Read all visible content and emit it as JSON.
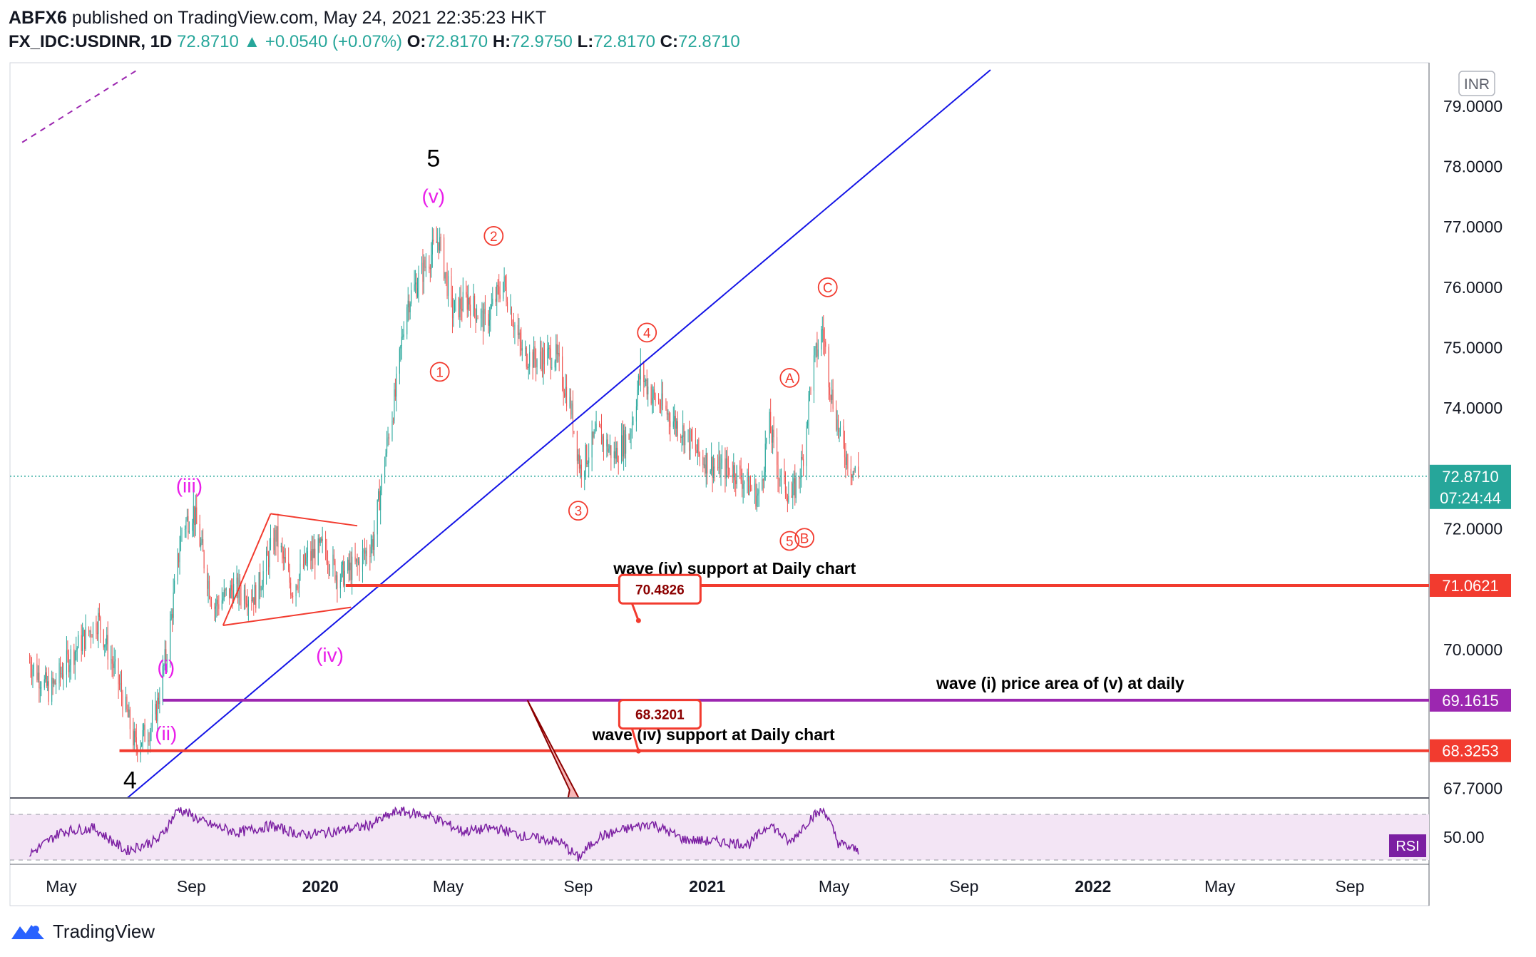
{
  "header": {
    "line1_user": "ABFX6",
    "line1_rest": " published on TradingView.com, May 24, 2021 22:35:23 HKT",
    "symbol": "FX_IDC:USDINR, 1D",
    "last": "72.8710",
    "change": "▲ +0.0540 (+0.07%)",
    "o_label": "O:",
    "o": "72.8170",
    "h_label": "H:",
    "h": "72.9750",
    "l_label": "L:",
    "l": "72.8170",
    "c_label": "C:",
    "c": "72.8710"
  },
  "footer": {
    "brand": "TradingView",
    "logo_icon": "tradingview-logo-icon"
  },
  "colors": {
    "up": "#26a69a",
    "down": "#ef5350",
    "trendline": "#1414e6",
    "support": "#f23b2f",
    "purple": "#9c27b0",
    "magenta": "#e91ee9",
    "rsi": "#7b1fa2"
  },
  "chart_data": {
    "type": "candlestick",
    "currency_badge": "INR",
    "price_axis": {
      "ylim": [
        67.2,
        79.6
      ],
      "ticks": [
        "79.0000",
        "78.0000",
        "77.0000",
        "76.0000",
        "75.0000",
        "74.0000",
        "72.0000",
        "70.0000",
        "67.7000"
      ]
    },
    "time_axis": {
      "ticks": [
        {
          "date": "2019-05-01",
          "label": "May",
          "bold": false
        },
        {
          "date": "2019-09-01",
          "label": "Sep",
          "bold": false
        },
        {
          "date": "2020-01-01",
          "label": "2020",
          "bold": true
        },
        {
          "date": "2020-05-01",
          "label": "May",
          "bold": false
        },
        {
          "date": "2020-09-01",
          "label": "Sep",
          "bold": false
        },
        {
          "date": "2021-01-01",
          "label": "2021",
          "bold": true
        },
        {
          "date": "2021-05-01",
          "label": "May",
          "bold": false
        },
        {
          "date": "2021-09-01",
          "label": "Sep",
          "bold": false
        },
        {
          "date": "2022-01-01",
          "label": "2022",
          "bold": true
        },
        {
          "date": "2022-05-01",
          "label": "May",
          "bold": false
        },
        {
          "date": "2022-09-01",
          "label": "Sep",
          "bold": false
        }
      ]
    },
    "price_path": [
      [
        "2019-04-01",
        69.8
      ],
      [
        "2019-04-20",
        69.3
      ],
      [
        "2019-05-10",
        69.9
      ],
      [
        "2019-06-05",
        70.5
      ],
      [
        "2019-06-25",
        69.4
      ],
      [
        "2019-07-10",
        68.4
      ],
      [
        "2019-07-28",
        68.8
      ],
      [
        "2019-08-10",
        70.1
      ],
      [
        "2019-08-23",
        72.0
      ],
      [
        "2019-09-03",
        72.3
      ],
      [
        "2019-09-22",
        70.7
      ],
      [
        "2019-10-10",
        71.0
      ],
      [
        "2019-11-01",
        70.9
      ],
      [
        "2019-11-20",
        71.9
      ],
      [
        "2019-12-05",
        71.0
      ],
      [
        "2019-12-20",
        71.5
      ],
      [
        "2020-01-05",
        71.7
      ],
      [
        "2020-01-18",
        71.2
      ],
      [
        "2020-02-05",
        71.4
      ],
      [
        "2020-02-20",
        71.8
      ],
      [
        "2020-03-05",
        73.5
      ],
      [
        "2020-03-12",
        74.2
      ],
      [
        "2020-03-22",
        75.7
      ],
      [
        "2020-04-05",
        76.2
      ],
      [
        "2020-04-22",
        76.8
      ],
      [
        "2020-05-05",
        75.6
      ],
      [
        "2020-05-20",
        75.8
      ],
      [
        "2020-06-05",
        75.4
      ],
      [
        "2020-06-22",
        76.1
      ],
      [
        "2020-07-10",
        74.9
      ],
      [
        "2020-07-25",
        74.8
      ],
      [
        "2020-08-10",
        74.9
      ],
      [
        "2020-08-25",
        74.0
      ],
      [
        "2020-09-03",
        73.0
      ],
      [
        "2020-09-20",
        73.6
      ],
      [
        "2020-10-05",
        73.2
      ],
      [
        "2020-10-20",
        73.6
      ],
      [
        "2020-10-30",
        74.6
      ],
      [
        "2020-11-10",
        74.2
      ],
      [
        "2020-11-25",
        73.9
      ],
      [
        "2020-12-10",
        73.6
      ],
      [
        "2020-12-25",
        73.2
      ],
      [
        "2021-01-10",
        73.0
      ],
      [
        "2021-01-25",
        73.0
      ],
      [
        "2021-02-10",
        72.7
      ],
      [
        "2021-02-20",
        72.5
      ],
      [
        "2021-02-28",
        73.8
      ],
      [
        "2021-03-10",
        72.9
      ],
      [
        "2021-03-22",
        72.5
      ],
      [
        "2021-04-01",
        73.1
      ],
      [
        "2021-04-10",
        74.6
      ],
      [
        "2021-04-20",
        75.3
      ],
      [
        "2021-04-28",
        74.3
      ],
      [
        "2021-05-08",
        73.4
      ],
      [
        "2021-05-18",
        73.0
      ],
      [
        "2021-05-24",
        72.87
      ]
    ],
    "last_price": {
      "value": "72.8710",
      "countdown": "07:24:44"
    },
    "horizontal_lines": [
      {
        "name": "support-upper",
        "y": 71.0621,
        "x_start": "2020-01-25",
        "label": "71.0621",
        "color": "#f23b2f"
      },
      {
        "name": "wave-i-area",
        "y": 69.1615,
        "x_start": "2019-08-05",
        "label": "69.1615",
        "color": "#9c27b0"
      },
      {
        "name": "support-lower",
        "y": 68.3253,
        "x_start": "2019-06-25",
        "label": "68.3253",
        "color": "#f23b2f"
      }
    ],
    "trendline": {
      "from": [
        "2019-03-20",
        66.0
      ],
      "to": [
        "2021-09-26",
        79.6
      ]
    },
    "dashed_line": {
      "from": [
        "2019-03-25",
        78.4
      ],
      "to": [
        "2019-07-12",
        79.6
      ]
    },
    "triangle": {
      "top": [
        [
          "2019-11-15",
          72.25
        ],
        [
          "2020-02-05",
          72.05
        ]
      ],
      "bottom": [
        [
          "2019-10-01",
          70.4
        ],
        [
          "2020-01-30",
          70.7
        ]
      ]
    },
    "annotations": [
      {
        "text": "5",
        "x": "2020-04-17",
        "y": 78.0,
        "color": "#000000",
        "size": "large"
      },
      {
        "text": "4",
        "x": "2019-07-05",
        "y": 67.7,
        "color": "#000000",
        "size": "large"
      },
      {
        "text": "(v)",
        "x": "2020-04-17",
        "y": 77.4,
        "color": "#e91ee9",
        "size": "medium"
      },
      {
        "text": "(iii)",
        "x": "2019-08-30",
        "y": 72.6,
        "color": "#e91ee9",
        "size": "medium"
      },
      {
        "text": "(iv)",
        "x": "2020-01-10",
        "y": 69.8,
        "color": "#e91ee9",
        "size": "medium"
      },
      {
        "text": "(i)",
        "x": "2019-08-08",
        "y": 69.6,
        "color": "#e91ee9",
        "size": "medium"
      },
      {
        "text": "(ii)",
        "x": "2019-08-08",
        "y": 68.5,
        "color": "#e91ee9",
        "size": "medium"
      },
      {
        "text": "1",
        "x": "2020-04-23",
        "y": 74.6,
        "color": "#f23b2f",
        "size": "circled"
      },
      {
        "text": "2",
        "x": "2020-06-13",
        "y": 76.85,
        "color": "#f23b2f",
        "size": "circled"
      },
      {
        "text": "3",
        "x": "2020-09-01",
        "y": 72.3,
        "color": "#f23b2f",
        "size": "circled"
      },
      {
        "text": "4",
        "x": "2020-11-05",
        "y": 75.25,
        "color": "#f23b2f",
        "size": "circled"
      },
      {
        "text": "5",
        "x": "2021-03-20",
        "y": 71.8,
        "color": "#f23b2f",
        "size": "circled"
      },
      {
        "text": "A",
        "x": "2021-03-20",
        "y": 74.5,
        "color": "#f23b2f",
        "size": "circled"
      },
      {
        "text": "B",
        "x": "2021-04-03",
        "y": 71.85,
        "color": "#f23b2f",
        "size": "circled"
      },
      {
        "text": "C",
        "x": "2021-04-25",
        "y": 76.0,
        "color": "#f23b2f",
        "size": "circled"
      },
      {
        "text": "wave (iv) support at Daily chart",
        "x": "2021-01-27",
        "y": 71.25,
        "color": "#000000",
        "size": "note"
      },
      {
        "text": "wave (i) price area of (v) at daily",
        "x": "2021-12-01",
        "y": 69.35,
        "color": "#000000",
        "size": "note"
      },
      {
        "text": "wave (iv) support at Daily chart",
        "x": "2021-01-07",
        "y": 68.5,
        "color": "#000000",
        "size": "note"
      }
    ],
    "price_labels": [
      {
        "text": "70.4826",
        "box": [
          "2020-10-28",
          71.07
        ],
        "anchor": [
          "2020-10-28",
          70.48
        ]
      },
      {
        "text": "68.3201",
        "box": [
          "2020-10-28",
          69.0
        ],
        "anchor": [
          "2020-10-28",
          68.32
        ]
      }
    ],
    "arrow": {
      "from": [
        "2020-07-15",
        69.16
      ],
      "to": [
        "2020-09-05",
        67.2
      ]
    },
    "rsi": {
      "name": "RSI",
      "tick": "50.00",
      "ylim": [
        30,
        80
      ],
      "upper": 70,
      "lower": 30,
      "points": [
        [
          "2019-04-01",
          35
        ],
        [
          "2019-05-01",
          55
        ],
        [
          "2019-06-01",
          58
        ],
        [
          "2019-07-01",
          38
        ],
        [
          "2019-08-01",
          48
        ],
        [
          "2019-08-20",
          75
        ],
        [
          "2019-09-15",
          62
        ],
        [
          "2019-10-15",
          54
        ],
        [
          "2019-11-15",
          60
        ],
        [
          "2019-12-15",
          52
        ],
        [
          "2020-01-15",
          55
        ],
        [
          "2020-02-15",
          60
        ],
        [
          "2020-03-15",
          73
        ],
        [
          "2020-04-15",
          68
        ],
        [
          "2020-05-15",
          55
        ],
        [
          "2020-06-15",
          58
        ],
        [
          "2020-07-15",
          50
        ],
        [
          "2020-08-15",
          46
        ],
        [
          "2020-09-01",
          32
        ],
        [
          "2020-09-20",
          50
        ],
        [
          "2020-10-20",
          58
        ],
        [
          "2020-11-10",
          62
        ],
        [
          "2020-12-10",
          48
        ],
        [
          "2021-01-10",
          46
        ],
        [
          "2021-02-10",
          44
        ],
        [
          "2021-03-01",
          62
        ],
        [
          "2021-03-20",
          45
        ],
        [
          "2021-04-10",
          68
        ],
        [
          "2021-04-22",
          74
        ],
        [
          "2021-05-05",
          45
        ],
        [
          "2021-05-24",
          38
        ]
      ]
    }
  }
}
